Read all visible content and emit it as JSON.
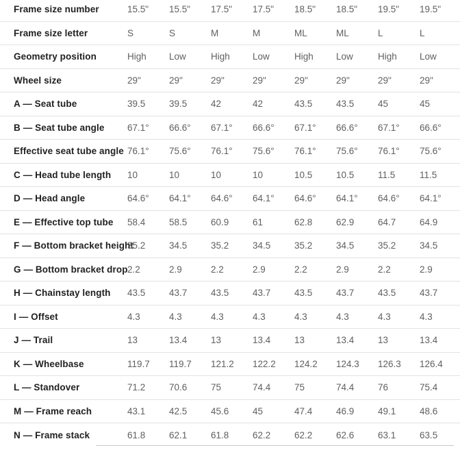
{
  "chart_data": {
    "type": "table",
    "title": "",
    "num_value_columns": 8,
    "rows": [
      {
        "label": "Frame size number",
        "values": [
          "15.5\"",
          "15.5\"",
          "17.5\"",
          "17.5\"",
          "18.5\"",
          "18.5\"",
          "19.5\"",
          "19.5\""
        ]
      },
      {
        "label": "Frame size letter",
        "values": [
          "S",
          "S",
          "M",
          "M",
          "ML",
          "ML",
          "L",
          "L"
        ]
      },
      {
        "label": "Geometry position",
        "values": [
          "High",
          "Low",
          "High",
          "Low",
          "High",
          "Low",
          "High",
          "Low"
        ]
      },
      {
        "label": "Wheel size",
        "values": [
          "29\"",
          "29\"",
          "29\"",
          "29\"",
          "29\"",
          "29\"",
          "29\"",
          "29\""
        ]
      },
      {
        "label": "A — Seat tube",
        "values": [
          "39.5",
          "39.5",
          "42",
          "42",
          "43.5",
          "43.5",
          "45",
          "45"
        ]
      },
      {
        "label": "B — Seat tube angle",
        "values": [
          "67.1°",
          "66.6°",
          "67.1°",
          "66.6°",
          "67.1°",
          "66.6°",
          "67.1°",
          "66.6°"
        ]
      },
      {
        "label": "Effective seat tube angle",
        "values": [
          "76.1°",
          "75.6°",
          "76.1°",
          "75.6°",
          "76.1°",
          "75.6°",
          "76.1°",
          "75.6°"
        ]
      },
      {
        "label": "C — Head tube length",
        "values": [
          "10",
          "10",
          "10",
          "10",
          "10.5",
          "10.5",
          "11.5",
          "11.5"
        ]
      },
      {
        "label": "D — Head angle",
        "values": [
          "64.6°",
          "64.1°",
          "64.6°",
          "64.1°",
          "64.6°",
          "64.1°",
          "64.6°",
          "64.1°"
        ]
      },
      {
        "label": "E — Effective top tube",
        "values": [
          "58.4",
          "58.5",
          "60.9",
          "61",
          "62.8",
          "62.9",
          "64.7",
          "64.9"
        ]
      },
      {
        "label": "F — Bottom bracket height",
        "values": [
          "35.2",
          "34.5",
          "35.2",
          "34.5",
          "35.2",
          "34.5",
          "35.2",
          "34.5"
        ]
      },
      {
        "label": "G — Bottom bracket drop",
        "values": [
          "2.2",
          "2.9",
          "2.2",
          "2.9",
          "2.2",
          "2.9",
          "2.2",
          "2.9"
        ]
      },
      {
        "label": "H — Chainstay length",
        "values": [
          "43.5",
          "43.7",
          "43.5",
          "43.7",
          "43.5",
          "43.7",
          "43.5",
          "43.7"
        ]
      },
      {
        "label": "I — Offset",
        "values": [
          "4.3",
          "4.3",
          "4.3",
          "4.3",
          "4.3",
          "4.3",
          "4.3",
          "4.3"
        ]
      },
      {
        "label": "J — Trail",
        "values": [
          "13",
          "13.4",
          "13",
          "13.4",
          "13",
          "13.4",
          "13",
          "13.4"
        ]
      },
      {
        "label": "K — Wheelbase",
        "values": [
          "119.7",
          "119.7",
          "121.2",
          "122.2",
          "124.2",
          "124.3",
          "126.3",
          "126.4"
        ]
      },
      {
        "label": "L — Standover",
        "values": [
          "71.2",
          "70.6",
          "75",
          "74.4",
          "75",
          "74.4",
          "76",
          "75.4"
        ]
      },
      {
        "label": "M — Frame reach",
        "values": [
          "43.1",
          "42.5",
          "45.6",
          "45",
          "47.4",
          "46.9",
          "49.1",
          "48.6"
        ]
      },
      {
        "label": "N — Frame stack",
        "values": [
          "61.8",
          "62.1",
          "61.8",
          "62.2",
          "62.2",
          "62.6",
          "63.1",
          "63.5"
        ]
      }
    ]
  },
  "colors": {
    "label_text": "#212121",
    "value_text": "#5f5f5f",
    "row_divider": "#e2e2e2",
    "partial_bottom_line": "#c9c9c9",
    "background": "#ffffff"
  }
}
